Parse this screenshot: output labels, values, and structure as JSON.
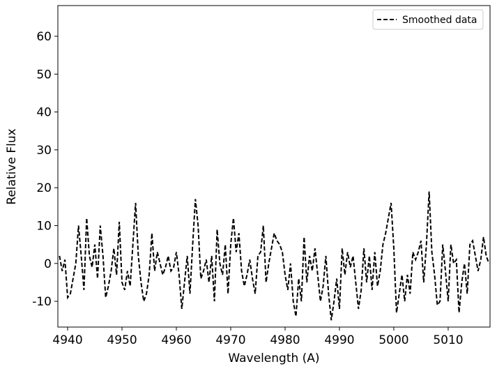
{
  "chart_data": {
    "type": "line",
    "xlabel": "Wavelength (A)",
    "ylabel": "Relative Flux",
    "xlim": [
      4938.2,
      5017.7
    ],
    "ylim": [
      -16.8,
      68.1
    ],
    "xticks": [
      4940,
      4950,
      4960,
      4970,
      4980,
      4990,
      5000,
      5010
    ],
    "yticks": [
      -10,
      0,
      10,
      20,
      30,
      40,
      50,
      60
    ],
    "legend": "upper right",
    "x": [
      4938.5,
      4939,
      4939.5,
      4940,
      4940.5,
      4941,
      4941.5,
      4942,
      4942.5,
      4943,
      4943.5,
      4944,
      4944.5,
      4945,
      4945.5,
      4946,
      4946.5,
      4947,
      4947.5,
      4948,
      4948.5,
      4949,
      4949.5,
      4950,
      4950.5,
      4951,
      4951.5,
      4952,
      4952.5,
      4953,
      4953.5,
      4954,
      4954.5,
      4955,
      4955.5,
      4956,
      4956.5,
      4957,
      4957.5,
      4958,
      4958.5,
      4959,
      4959.5,
      4960,
      4960.5,
      4961,
      4961.5,
      4962,
      4962.5,
      4963,
      4963.5,
      4964,
      4964.5,
      4965,
      4965.5,
      4966,
      4966.5,
      4967,
      4967.5,
      4968,
      4968.5,
      4969,
      4969.5,
      4970,
      4970.5,
      4971,
      4971.5,
      4972,
      4972.5,
      4973,
      4973.5,
      4974,
      4974.5,
      4975,
      4975.5,
      4976,
      4976.5,
      4977,
      4977.5,
      4978,
      4978.5,
      4979,
      4979.5,
      4980,
      4980.5,
      4981,
      4981.5,
      4982,
      4982.5,
      4983,
      4983.5,
      4984,
      4984.5,
      4985,
      4985.5,
      4986,
      4986.5,
      4987,
      4987.5,
      4988,
      4988.5,
      4989,
      4989.5,
      4990,
      4990.5,
      4991,
      4991.5,
      4992,
      4992.5,
      4993,
      4993.5,
      4994,
      4994.5,
      4995,
      4995.5,
      4996,
      4996.5,
      4997,
      4997.5,
      4998,
      4998.5,
      4999,
      4999.5,
      5000,
      5000.5,
      5001,
      5001.5,
      5002,
      5002.5,
      5003,
      5003.5,
      5004,
      5004.5,
      5005,
      5005.5,
      5006,
      5006.5,
      5007,
      5007.5,
      5008,
      5008.5,
      5009,
      5009.5,
      5010,
      5010.5,
      5011,
      5011.5,
      5012,
      5012.5,
      5013,
      5013.5,
      5014,
      5014.5,
      5015,
      5015.5,
      5016,
      5016.5,
      5017,
      5017.5
    ],
    "series": [
      {
        "name": "Smoothed data",
        "color": "#000000",
        "dashed": true,
        "values": [
          2,
          -2,
          1,
          -9,
          -8,
          -4,
          0,
          10,
          2,
          -7,
          12,
          2,
          -1,
          5,
          -4,
          10,
          2,
          -9,
          -6,
          -2,
          4,
          -3,
          11,
          -5,
          -7,
          -2,
          -6,
          5,
          16,
          2,
          -5,
          -10,
          -8,
          -3,
          8,
          -2,
          3,
          0,
          -3,
          -1,
          2,
          -2,
          -1,
          3,
          -3,
          -12,
          -5,
          2,
          -8,
          5,
          17,
          10,
          -4,
          -2,
          1,
          -5,
          2,
          -10,
          9,
          0,
          -3,
          5,
          -8,
          5,
          12,
          3,
          8,
          -2,
          -6,
          -3,
          1,
          -4,
          -8,
          2,
          3,
          10,
          -5,
          0,
          4,
          8,
          6,
          5,
          3,
          -3,
          -7,
          0,
          -10,
          -14,
          -4,
          -10,
          7,
          -5,
          2,
          -2,
          4,
          -3,
          -10,
          -6,
          2,
          -8,
          -15,
          -10,
          -4,
          -12,
          4,
          -3,
          3,
          -1,
          2,
          -5,
          -12,
          -7,
          4,
          -5,
          2,
          -7,
          3,
          -6,
          -2,
          5,
          8,
          12,
          16,
          4,
          -13,
          -8,
          -3,
          -10,
          -3,
          -8,
          3,
          1,
          3,
          6,
          -5,
          5,
          19,
          3,
          -3,
          -11,
          -10,
          5,
          -2,
          -10,
          5,
          0,
          1,
          -13,
          -5,
          0,
          -8,
          5,
          6,
          2,
          -2,
          1,
          7,
          2,
          0
        ]
      }
    ]
  }
}
